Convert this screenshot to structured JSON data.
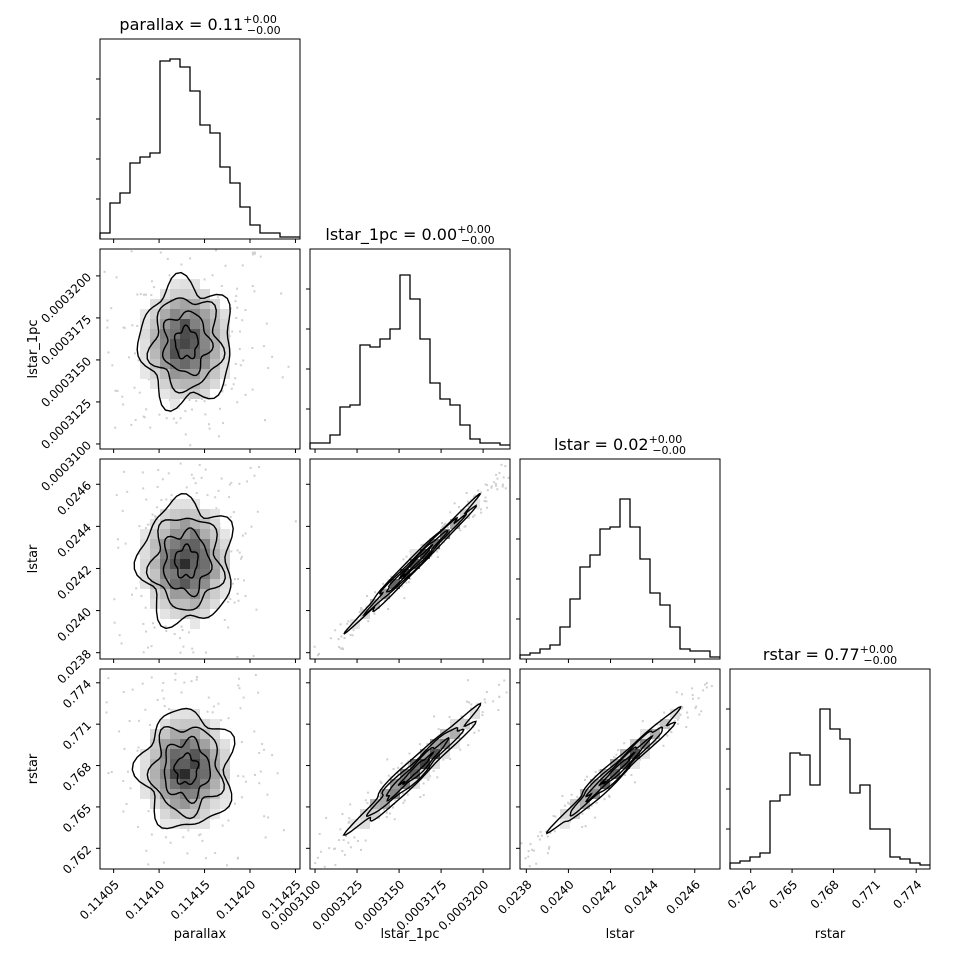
{
  "chart_data": {
    "type": "corner",
    "parameters": [
      {
        "name": "parallax",
        "xlabel": "parallax",
        "ylabel": "",
        "title_prefix": "parallax = ",
        "title_value": "0.11",
        "title_plus": "+0.00",
        "title_minus": "−0.00",
        "range": [
          0.114035,
          0.114255
        ],
        "ticks": [
          0.11405,
          0.1141,
          0.11415,
          0.1142,
          0.11425
        ],
        "tick_labels": [
          "0.11405",
          "0.11410",
          "0.11415",
          "0.11420",
          "0.11425"
        ],
        "histogram": [
          0.03,
          0.18,
          0.23,
          0.38,
          0.41,
          0.43,
          0.89,
          0.9,
          0.86,
          0.74,
          0.57,
          0.53,
          0.36,
          0.28,
          0.16,
          0.07,
          0.03,
          0.03,
          0.01,
          0.01
        ]
      },
      {
        "name": "lstar_1pc",
        "xlabel": "lstar_1pc",
        "ylabel": "lstar_1pc",
        "title_prefix": "lstar_1pc = ",
        "title_value": "0.00",
        "title_plus": "+0.00",
        "title_minus": "−0.00",
        "range": [
          0.0003097,
          0.0003216
        ],
        "ticks": [
          0.00031,
          0.0003125,
          0.000315,
          0.0003175,
          0.00032
        ],
        "tick_labels": [
          "0.0003100",
          "0.0003125",
          "0.0003150",
          "0.0003175",
          "0.0003200"
        ],
        "histogram": [
          0.03,
          0.03,
          0.07,
          0.21,
          0.22,
          0.52,
          0.51,
          0.55,
          0.6,
          0.87,
          0.75,
          0.55,
          0.33,
          0.25,
          0.22,
          0.12,
          0.05,
          0.03,
          0.03,
          0.02
        ]
      },
      {
        "name": "lstar",
        "xlabel": "lstar",
        "ylabel": "lstar",
        "title_prefix": "lstar = ",
        "title_value": "0.02",
        "title_plus": "+0.00",
        "title_minus": "−0.00",
        "range": [
          0.02377,
          0.02472
        ],
        "ticks": [
          0.0238,
          0.024,
          0.0242,
          0.0244,
          0.0246
        ],
        "tick_labels": [
          "0.0238",
          "0.0240",
          "0.0242",
          "0.0244",
          "0.0246"
        ],
        "histogram": [
          0.02,
          0.03,
          0.05,
          0.07,
          0.16,
          0.3,
          0.46,
          0.52,
          0.65,
          0.66,
          0.8,
          0.66,
          0.5,
          0.33,
          0.27,
          0.16,
          0.05,
          0.04,
          0.04,
          0.01
        ]
      },
      {
        "name": "rstar",
        "xlabel": "rstar",
        "ylabel": "rstar",
        "title_prefix": "rstar = ",
        "title_value": "0.77",
        "title_plus": "+0.00",
        "title_minus": "−0.00",
        "range": [
          0.7605,
          0.775
        ],
        "ticks": [
          0.762,
          0.765,
          0.768,
          0.771,
          0.774
        ],
        "tick_labels": [
          "0.762",
          "0.765",
          "0.768",
          "0.771",
          "0.774"
        ],
        "histogram": [
          0.03,
          0.04,
          0.06,
          0.08,
          0.34,
          0.37,
          0.58,
          0.57,
          0.42,
          0.8,
          0.7,
          0.65,
          0.38,
          0.42,
          0.2,
          0.2,
          0.06,
          0.05,
          0.03,
          0.02
        ]
      }
    ],
    "pairs": [
      {
        "x": "parallax",
        "y": "lstar_1pc",
        "correlation": 0.0,
        "mean": [
          0.11413,
          0.000316
        ],
        "sigma": [
          2.5e-05,
          1.8e-06
        ]
      },
      {
        "x": "parallax",
        "y": "lstar",
        "correlation": 0.0,
        "mean": [
          0.11413,
          0.02423
        ],
        "sigma": [
          2.5e-05,
          0.000145
        ]
      },
      {
        "x": "lstar_1pc",
        "y": "lstar",
        "correlation": 0.99,
        "mean": [
          0.000316,
          0.02423
        ],
        "sigma": [
          1.8e-06,
          0.000145
        ]
      },
      {
        "x": "parallax",
        "y": "rstar",
        "correlation": 0.0,
        "mean": [
          0.11413,
          0.7677
        ],
        "sigma": [
          2.5e-05,
          0.0021
        ]
      },
      {
        "x": "lstar_1pc",
        "y": "rstar",
        "correlation": 0.97,
        "mean": [
          0.000316,
          0.7677
        ],
        "sigma": [
          1.8e-06,
          0.0021
        ]
      },
      {
        "x": "lstar",
        "y": "rstar",
        "correlation": 0.98,
        "mean": [
          0.02423,
          0.7677
        ],
        "sigma": [
          0.000145,
          0.0021
        ]
      }
    ],
    "contour_levels_sigma": [
      0.5,
      1.0,
      1.5,
      2.0
    ],
    "grid": false,
    "legend": "none"
  }
}
